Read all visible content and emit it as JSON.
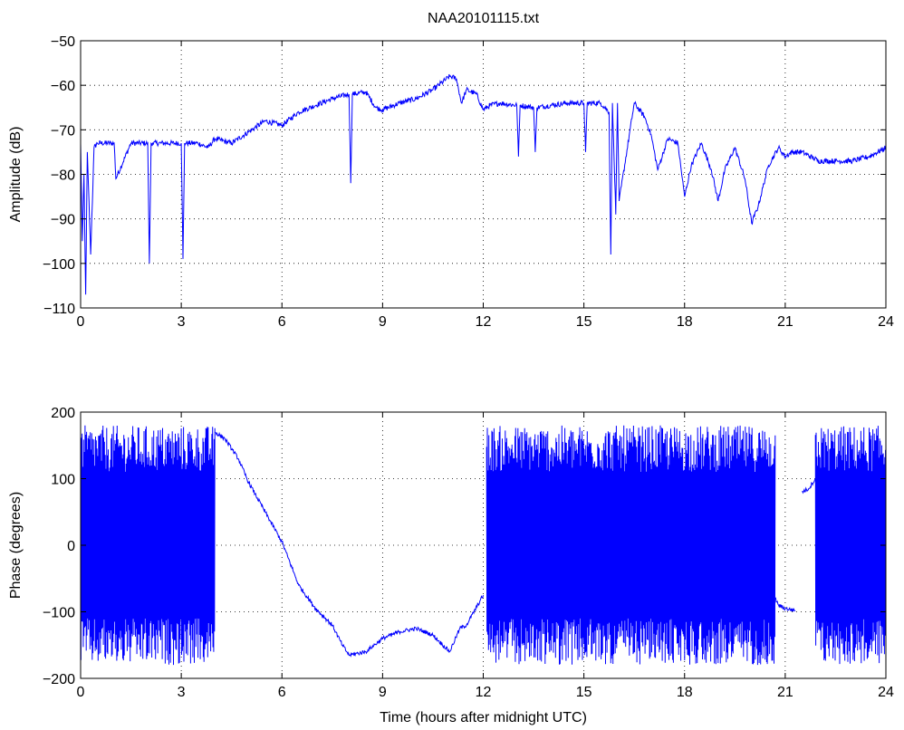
{
  "figure_title": "NAA20101115.txt",
  "colors": {
    "line": "#0000ff",
    "axes": "#000000",
    "grid": "#000000",
    "background": "#ffffff"
  },
  "chart_data": [
    {
      "type": "line",
      "title": "NAA20101115.txt",
      "xlabel": "",
      "ylabel": "Amplitude (dB)",
      "xlim": [
        0,
        24
      ],
      "ylim": [
        -110,
        -50
      ],
      "xticks": [
        0,
        3,
        6,
        9,
        12,
        15,
        18,
        21,
        24
      ],
      "yticks": [
        -110,
        -100,
        -90,
        -80,
        -70,
        -60,
        -50
      ],
      "xtick_labels": [
        "0",
        "3",
        "6",
        "9",
        "12",
        "15",
        "18",
        "21",
        "24"
      ],
      "ytick_labels": [
        "−110",
        "−100",
        "−90",
        "−80",
        "−70",
        "−60",
        "−50"
      ],
      "grid": true,
      "series": [
        {
          "x": [
            0,
            0.05,
            0.1,
            0.15,
            0.2,
            0.3,
            0.4,
            0.5,
            1,
            1.05,
            1.5,
            2,
            2.05,
            2.1,
            2.15,
            2.5,
            3,
            3.05,
            3.1,
            3.15,
            3.5,
            3.8,
            4,
            4.5,
            5,
            5.5,
            6,
            6.5,
            7,
            7.5,
            8,
            8.05,
            8.1,
            8.5,
            8.8,
            9,
            9.5,
            10,
            10.5,
            11,
            11.2,
            11.35,
            11.5,
            11.8,
            12,
            12.2,
            12.5,
            13,
            13.05,
            13.1,
            13.5,
            13.55,
            13.6,
            14,
            14.5,
            15,
            15.05,
            15.1,
            15.5,
            15.75,
            15.8,
            15.85,
            15.95,
            16,
            16.05,
            16.5,
            16.8,
            17,
            17.2,
            17.5,
            17.8,
            18,
            18.2,
            18.5,
            18.8,
            19,
            19.2,
            19.5,
            19.8,
            20,
            20.2,
            20.5,
            20.8,
            21,
            21.2,
            21.5,
            22,
            22.5,
            23,
            23.5,
            24
          ],
          "y": [
            -73,
            -95,
            -80,
            -107,
            -75,
            -98,
            -74,
            -73,
            -73,
            -81,
            -73,
            -73,
            -100,
            -73,
            -73,
            -73,
            -73,
            -99,
            -73,
            -73,
            -73,
            -74,
            -72,
            -73,
            -70.5,
            -68,
            -69,
            -66,
            -64.5,
            -63,
            -62,
            -82,
            -62,
            -61.5,
            -65,
            -65.5,
            -64,
            -63,
            -61,
            -58,
            -58.5,
            -64,
            -61,
            -62,
            -65.5,
            -64.5,
            -64,
            -64.5,
            -76,
            -64.5,
            -65,
            -75,
            -65,
            -64.5,
            -64,
            -64,
            -75,
            -64,
            -64,
            -66,
            -98,
            -64,
            -89,
            -64,
            -86,
            -64,
            -67,
            -71,
            -79,
            -72,
            -73,
            -85,
            -78,
            -73,
            -79,
            -86,
            -79,
            -74,
            -81,
            -91,
            -87,
            -78,
            -74,
            -76,
            -75,
            -75,
            -77,
            -77,
            -77,
            -76,
            -74
          ]
        }
      ]
    },
    {
      "type": "line",
      "title": "",
      "xlabel": "Time (hours after midnight UTC)",
      "ylabel": "Phase (degrees)",
      "xlim": [
        0,
        24
      ],
      "ylim": [
        -200,
        200
      ],
      "xticks": [
        0,
        3,
        6,
        9,
        12,
        15,
        18,
        21,
        24
      ],
      "yticks": [
        -200,
        -100,
        0,
        100,
        200
      ],
      "xtick_labels": [
        "0",
        "3",
        "6",
        "9",
        "12",
        "15",
        "18",
        "21",
        "24"
      ],
      "ytick_labels": [
        "−200",
        "−100",
        "0",
        "100",
        "200"
      ],
      "grid": true,
      "noisy_wrap_intervals": [
        [
          0,
          4
        ],
        [
          12.1,
          20.7
        ],
        [
          21.9,
          24
        ]
      ],
      "series": [
        {
          "x": [
            4,
            4.3,
            4.7,
            5,
            5.5,
            6,
            6.5,
            7,
            7.5,
            7.8,
            8,
            8.5,
            9,
            9.5,
            10,
            10.5,
            11,
            11.3,
            11.5,
            12
          ],
          "y": [
            170,
            160,
            130,
            95,
            50,
            5,
            -60,
            -95,
            -120,
            -150,
            -165,
            -160,
            -140,
            -130,
            -125,
            -135,
            -160,
            -125,
            -120,
            -75
          ]
        },
        {
          "x": [
            20.7,
            20.8,
            21,
            21.3
          ],
          "y": [
            -80,
            -90,
            -95,
            -98
          ]
        },
        {
          "x": [
            21.5,
            21.7,
            21.9
          ],
          "y": [
            80,
            85,
            100
          ]
        }
      ]
    }
  ]
}
